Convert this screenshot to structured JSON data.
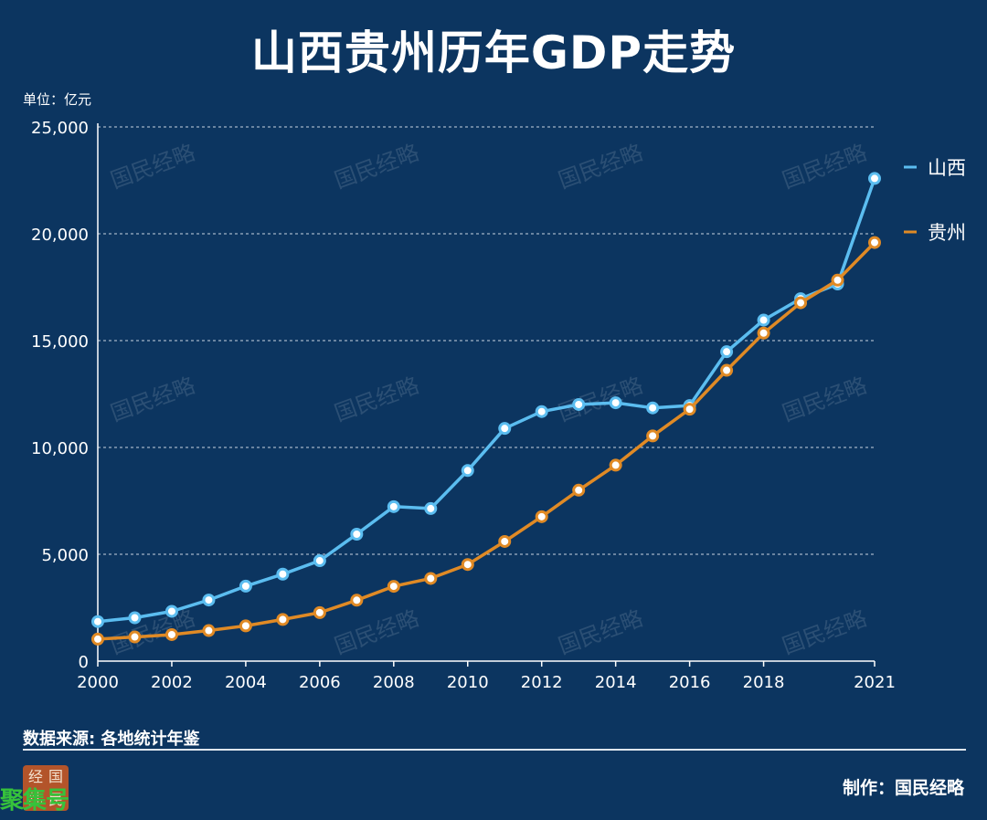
{
  "title": "山西贵州历年GDP走势",
  "unit_label": "单位：亿元",
  "source_label": "数据来源: 各地统计年鉴",
  "credit_label": "制作：国民经略",
  "watermark_text": "国民经略",
  "logo_chars": [
    "经",
    "国",
    "纬",
    "民"
  ],
  "stamp_text": "聚集号",
  "colors": {
    "background": "#0c3560",
    "shanxi": "#5bbdf0",
    "guizhou": "#e08a25",
    "grid": "#c7d3e0"
  },
  "chart_data": {
    "type": "line",
    "title": "山西贵州历年GDP走势",
    "xlabel": "",
    "ylabel": "单位：亿元",
    "x": [
      2000,
      2001,
      2002,
      2003,
      2004,
      2005,
      2006,
      2007,
      2008,
      2009,
      2010,
      2011,
      2012,
      2013,
      2014,
      2015,
      2016,
      2017,
      2018,
      2019,
      2020,
      2021
    ],
    "x_ticks": [
      "2000",
      "2002",
      "2004",
      "2006",
      "2008",
      "2010",
      "2012",
      "2014",
      "2016",
      "2018",
      "2021"
    ],
    "y_ticks": [
      "0",
      "5,000",
      "10,000",
      "15,000",
      "20,000",
      "25,000"
    ],
    "xlim": [
      2000,
      2021
    ],
    "ylim": [
      0,
      25000
    ],
    "grid": "horizontal dashed",
    "legend_position": "right",
    "series": [
      {
        "name": "山西",
        "color": "#5bbdf0",
        "values": [
          1850,
          2030,
          2330,
          2860,
          3510,
          4070,
          4700,
          5940,
          7230,
          7140,
          8920,
          10890,
          11680,
          12010,
          12090,
          11850,
          11960,
          14480,
          15960,
          16960,
          17650,
          22590
        ]
      },
      {
        "name": "贵州",
        "color": "#e08a25",
        "values": [
          1030,
          1130,
          1240,
          1430,
          1650,
          1950,
          2270,
          2850,
          3500,
          3870,
          4520,
          5600,
          6760,
          8000,
          9170,
          10540,
          11790,
          13610,
          15350,
          16770,
          17830,
          19590
        ]
      }
    ]
  }
}
